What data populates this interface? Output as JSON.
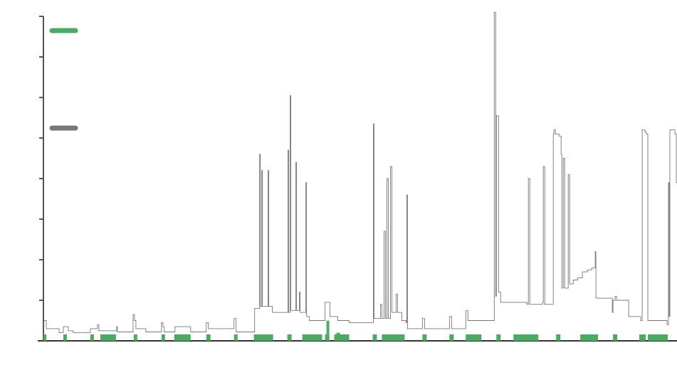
{
  "chart_data": {
    "type": "line",
    "title": "",
    "xlabel": "",
    "ylabel": "",
    "xlim": [
      0,
      891
    ],
    "ylim": [
      0,
      8
    ],
    "y_ticks": [
      0,
      1,
      2,
      3,
      4,
      5,
      6,
      7,
      8
    ],
    "legend": {
      "placement": "top-left"
    },
    "series": [
      {
        "key": "green",
        "color": "#4ea862",
        "style": "bars",
        "segments": [
          [
            0,
            4
          ],
          [
            28,
            33
          ],
          [
            66,
            71
          ],
          [
            80,
            102
          ],
          [
            127,
            132
          ],
          [
            166,
            171
          ],
          [
            184,
            207
          ],
          [
            229,
            235
          ],
          [
            268,
            273
          ],
          [
            296,
            323
          ],
          [
            343,
            349
          ],
          [
            364,
            392
          ],
          [
            396,
            402
          ],
          [
            409,
            430
          ],
          [
            463,
            469
          ],
          [
            476,
            508
          ],
          [
            533,
            539
          ],
          [
            571,
            577
          ],
          [
            594,
            616
          ],
          [
            637,
            643
          ],
          [
            661,
            696
          ],
          [
            721,
            727
          ],
          [
            755,
            780
          ],
          [
            801,
            807
          ],
          [
            838,
            847
          ],
          [
            850,
            878
          ]
        ],
        "default_value": 0.16,
        "spikes": [
          [
            398,
            0.5
          ],
          [
            399,
            0.5
          ],
          [
            400,
            0.5
          ],
          [
            401,
            0.5
          ],
          [
            412,
            0.2
          ],
          [
            413,
            0.2
          ],
          [
            414,
            0.2
          ],
          [
            415,
            0.2
          ],
          [
            416,
            0.2
          ]
        ]
      },
      {
        "key": "gray",
        "color": "#777777",
        "style": "line",
        "points": [
          [
            0,
            0.5
          ],
          [
            3,
            0.5
          ],
          [
            4,
            0.3
          ],
          [
            20,
            0.3
          ],
          [
            22,
            0.2
          ],
          [
            27,
            0.2
          ],
          [
            28,
            0.35
          ],
          [
            34,
            0.35
          ],
          [
            35,
            0.25
          ],
          [
            41,
            0.25
          ],
          [
            42,
            0.2
          ],
          [
            65,
            0.2
          ],
          [
            66,
            0.3
          ],
          [
            74,
            0.3
          ],
          [
            76,
            0.4
          ],
          [
            78,
            0.25
          ],
          [
            101,
            0.25
          ],
          [
            103,
            0.35
          ],
          [
            104,
            0.22
          ],
          [
            125,
            0.22
          ],
          [
            126,
            0.65
          ],
          [
            128,
            0.5
          ],
          [
            130,
            0.3
          ],
          [
            142,
            0.3
          ],
          [
            144,
            0.22
          ],
          [
            164,
            0.22
          ],
          [
            166,
            0.45
          ],
          [
            168,
            0.35
          ],
          [
            170,
            0.22
          ],
          [
            183,
            0.22
          ],
          [
            185,
            0.35
          ],
          [
            205,
            0.35
          ],
          [
            207,
            0.22
          ],
          [
            227,
            0.22
          ],
          [
            229,
            0.45
          ],
          [
            232,
            0.3
          ],
          [
            266,
            0.3
          ],
          [
            268,
            0.55
          ],
          [
            271,
            0.22
          ],
          [
            296,
            0.22
          ],
          [
            297,
            0.8
          ],
          [
            303,
            0.8
          ],
          [
            304,
            4.6
          ],
          [
            305,
            0.85
          ],
          [
            307,
            4.2
          ],
          [
            308,
            0.85
          ],
          [
            316,
            4.2
          ],
          [
            317,
            0.85
          ],
          [
            322,
            0.7
          ],
          [
            343,
            0.7
          ],
          [
            344,
            4.7
          ],
          [
            345,
            0.7
          ],
          [
            347,
            6.05
          ],
          [
            348,
            0.75
          ],
          [
            355,
            4.4
          ],
          [
            356,
            0.75
          ],
          [
            360,
            1.2
          ],
          [
            361,
            0.7
          ],
          [
            369,
            3.9
          ],
          [
            370,
            0.6
          ],
          [
            374,
            0.5
          ],
          [
            395,
            0.5
          ],
          [
            396,
            0.95
          ],
          [
            402,
            0.95
          ],
          [
            403,
            0.6
          ],
          [
            412,
            0.6
          ],
          [
            414,
            0.5
          ],
          [
            430,
            0.45
          ],
          [
            462,
            0.45
          ],
          [
            464,
            5.35
          ],
          [
            465,
            0.55
          ],
          [
            474,
            0.9
          ],
          [
            476,
            0.55
          ],
          [
            479,
            2.7
          ],
          [
            481,
            0.55
          ],
          [
            483,
            4.0
          ],
          [
            485,
            0.55
          ],
          [
            488,
            4.3
          ],
          [
            490,
            0.7
          ],
          [
            496,
            1.15
          ],
          [
            498,
            0.7
          ],
          [
            504,
            0.5
          ],
          [
            510,
            0.45
          ],
          [
            511,
            3.6
          ],
          [
            512,
            0.3
          ],
          [
            532,
            0.3
          ],
          [
            533,
            0.55
          ],
          [
            536,
            0.3
          ],
          [
            570,
            0.3
          ],
          [
            571,
            0.6
          ],
          [
            574,
            0.3
          ],
          [
            593,
            0.3
          ],
          [
            594,
            0.75
          ],
          [
            597,
            0.5
          ],
          [
            633,
            0.5
          ],
          [
            634,
            8.1
          ],
          [
            636,
            1.1
          ],
          [
            637,
            5.55
          ],
          [
            640,
            1.2
          ],
          [
            643,
            0.95
          ],
          [
            680,
            0.9
          ],
          [
            682,
            4.0
          ],
          [
            684,
            0.9
          ],
          [
            702,
            0.95
          ],
          [
            703,
            4.3
          ],
          [
            705,
            0.9
          ],
          [
            715,
            0.9
          ],
          [
            717,
            5.1
          ],
          [
            718,
            5.2
          ],
          [
            720,
            5.1
          ],
          [
            725,
            5.05
          ],
          [
            728,
            4.6
          ],
          [
            729,
            1.3
          ],
          [
            731,
            4.5
          ],
          [
            733,
            1.3
          ],
          [
            738,
            4.1
          ],
          [
            740,
            1.4
          ],
          [
            745,
            1.5
          ],
          [
            751,
            1.55
          ],
          [
            758,
            1.7
          ],
          [
            765,
            1.75
          ],
          [
            771,
            1.8
          ],
          [
            776,
            2.2
          ],
          [
            777,
            1.05
          ],
          [
            800,
            0.7
          ],
          [
            801,
            1.0
          ],
          [
            804,
            1.1
          ],
          [
            806,
            1.0
          ],
          [
            823,
            0.6
          ],
          [
            840,
            0.5
          ],
          [
            842,
            5.2
          ],
          [
            846,
            5.15
          ],
          [
            848,
            5.1
          ],
          [
            850,
            0.5
          ],
          [
            877,
            0.4
          ],
          [
            879,
            3.9
          ],
          [
            880,
            0.6
          ],
          [
            881,
            5.2
          ],
          [
            886,
            5.2
          ],
          [
            888,
            5.1
          ],
          [
            890,
            3.9
          ],
          [
            891,
            3.9
          ]
        ]
      }
    ]
  }
}
